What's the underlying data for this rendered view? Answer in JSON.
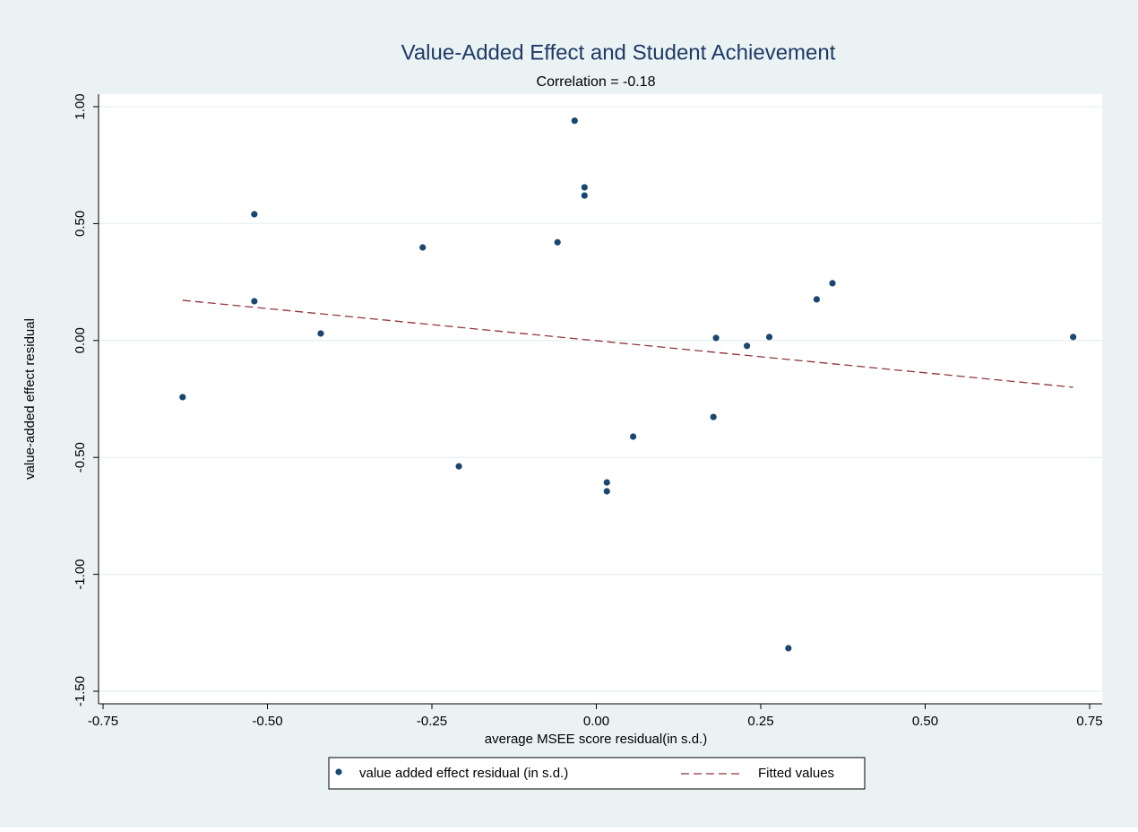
{
  "chart_data": {
    "type": "scatter",
    "title": "Value-Added Effect and Student Achievement",
    "subtitle": "Correlation = -0.18",
    "x_label": "average MSEE score residual(in s.d.)",
    "y_label": "value-added effect residual",
    "xlim": [
      -0.75,
      0.75
    ],
    "ylim": [
      -1.5,
      1.0
    ],
    "xticks": [
      -0.75,
      {
        "value": -0.5,
        "label": "-0.50"
      },
      -0.25,
      {
        "value": 0,
        "label": "0.00"
      },
      0.25,
      {
        "value": 0.5,
        "label": "0.50"
      },
      0.75
    ],
    "yticks": [
      {
        "value": -1.5,
        "label": "-1.50"
      },
      {
        "value": -1.0,
        "label": "-1.00"
      },
      {
        "value": -0.5,
        "label": "-0.50"
      },
      {
        "value": 0,
        "label": "0.00"
      },
      {
        "value": 0.5,
        "label": "0.50"
      },
      {
        "value": 1.0,
        "label": "1.00"
      }
    ],
    "grid": true,
    "legend": "bottom",
    "series": [
      {
        "name": "value added effect residual (in s.d.)",
        "type": "scatter",
        "color": "#1a476f",
        "x": [
          -0.033,
          -0.018,
          -0.018,
          -0.52,
          -0.264,
          -0.059,
          -0.52,
          -0.419,
          -0.629,
          -0.209,
          0.016,
          0.016,
          0.056,
          0.178,
          0.182,
          0.229,
          0.263,
          0.335,
          0.359,
          0.725,
          0.292
        ],
        "values": [
          0.94,
          0.655,
          0.62,
          0.54,
          0.398,
          0.42,
          0.168,
          0.03,
          -0.242,
          -0.538,
          -0.607,
          -0.645,
          -0.411,
          -0.327,
          0.011,
          -0.023,
          0.015,
          0.176,
          0.245,
          0.015,
          -1.316
        ]
      },
      {
        "name": "Fitted values",
        "type": "line",
        "color": "#90353b",
        "x": [
          -0.629,
          0.725
        ],
        "values": [
          0.172,
          -0.2
        ]
      }
    ]
  }
}
